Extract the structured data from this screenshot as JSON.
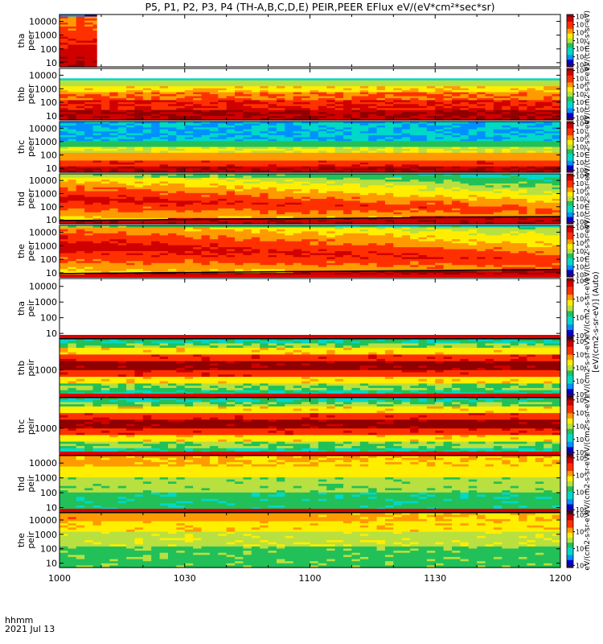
{
  "chart_data": {
    "type": "heatmap",
    "title": "P5, P1, P2, P3, P4 (TH-A,B,C,D,E) PEIR,PEER EFlux eV/(eV*cm²*sec*sr)",
    "x_tick_labels": [
      "1000",
      "1030",
      "1100",
      "1130",
      "1200"
    ],
    "x_range_minutes": [
      0,
      120
    ],
    "x_ticks_minutes": [
      0,
      30,
      60,
      90,
      120
    ],
    "time_label": "hhmm",
    "date_label": "2021 Jul 13",
    "colorbar_axis_label": "[eV/(cm2-s-sr-eV)] (Auto)",
    "colorbar_label_fragment": "eV/(cm2-s-sr-eV)",
    "colorscale": [
      "#3a0050",
      "#0000c8",
      "#0090ff",
      "#00d8c8",
      "#22c058",
      "#b8e040",
      "#ffee00",
      "#ff9a00",
      "#ff3000",
      "#d00000",
      "#900000"
    ],
    "panels": [
      {
        "name": "tha-peer",
        "ylabel": [
          "tha",
          "peer"
        ],
        "ytick_labels": [
          "10",
          "100",
          "1000",
          "10000"
        ],
        "log_range": [
          0.7,
          4.5
        ],
        "cbar_ticks": [
          "10²",
          "10³",
          "10⁴",
          "10⁵",
          "10⁶",
          "10⁷",
          "10⁸"
        ],
        "cbar_range": [
          2,
          8
        ],
        "profile": "strong",
        "data_end_minutes": 9,
        "boundary_line": false,
        "top_strip": false
      },
      {
        "name": "thb-peer",
        "ylabel": [
          "thb",
          "peer"
        ],
        "ytick_labels": [
          "10",
          "100",
          "1000",
          "10000"
        ],
        "log_range": [
          0.7,
          4.5
        ],
        "cbar_ticks": [
          "10²",
          "10³",
          "10⁴",
          "10⁵",
          "10⁶",
          "10⁷",
          "10⁸"
        ],
        "cbar_range": [
          2,
          8
        ],
        "profile": "peer_steady",
        "data_end_minutes": 120,
        "boundary_line": false,
        "top_strip": false
      },
      {
        "name": "thc-peer",
        "ylabel": [
          "thc",
          "peer"
        ],
        "ytick_labels": [
          "10",
          "100",
          "1000",
          "10000"
        ],
        "log_range": [
          0.7,
          4.5
        ],
        "cbar_ticks": [
          "10²",
          "10³",
          "10⁴",
          "10⁵",
          "10⁶",
          "10⁷",
          "10⁸"
        ],
        "cbar_range": [
          2,
          8
        ],
        "profile": "peer_bluetop",
        "data_end_minutes": 120,
        "boundary_line": false,
        "top_strip": false
      },
      {
        "name": "thd-peer",
        "ylabel": [
          "thd",
          "peer"
        ],
        "ytick_labels": [
          "10",
          "100",
          "1000",
          "10000"
        ],
        "log_range": [
          0.7,
          4.5
        ],
        "cbar_ticks": [
          "10²",
          "10³",
          "10⁴",
          "10⁵",
          "10⁶",
          "10⁷",
          "10⁸"
        ],
        "cbar_range": [
          2,
          8
        ],
        "profile": "peer_evolving",
        "data_end_minutes": 120,
        "boundary_line": true,
        "top_strip": false
      },
      {
        "name": "the-peer",
        "ylabel": [
          "the",
          "peer"
        ],
        "ytick_labels": [
          "10",
          "100",
          "1000",
          "10000"
        ],
        "log_range": [
          0.7,
          4.5
        ],
        "cbar_ticks": [
          "10²",
          "10³",
          "10⁴",
          "10⁵",
          "10⁶",
          "10⁷",
          "10⁸"
        ],
        "cbar_range": [
          2,
          8
        ],
        "profile": "peer_evolving2",
        "data_end_minutes": 120,
        "boundary_line": true,
        "top_strip": false
      },
      {
        "name": "tha-peir",
        "ylabel": [
          "tha",
          "peir"
        ],
        "ytick_labels": [
          "10",
          "100",
          "1000",
          "10000"
        ],
        "log_range": [
          0.7,
          4.5
        ],
        "cbar_ticks": [
          "10⁰",
          "10²",
          "10⁴",
          "10⁶"
        ],
        "cbar_range": [
          0,
          7
        ],
        "profile": "none",
        "data_end_minutes": 0,
        "boundary_line": false,
        "top_strip": true
      },
      {
        "name": "thb-peir",
        "ylabel": [
          "thb",
          "peir"
        ],
        "ytick_labels": [
          "1000"
        ],
        "log_range": [
          2.3,
          3.8
        ],
        "cbar_ticks": [
          "10²",
          "10³",
          "10⁴",
          "10⁵",
          "10⁶"
        ],
        "cbar_range": [
          1.5,
          6.5
        ],
        "profile": "peir_band",
        "data_end_minutes": 120,
        "boundary_line": false,
        "top_strip": true
      },
      {
        "name": "thc-peir",
        "ylabel": [
          "thc",
          "peir"
        ],
        "ytick_labels": [
          "1000"
        ],
        "log_range": [
          2.3,
          3.8
        ],
        "cbar_ticks": [
          "10²",
          "10³",
          "10⁴",
          "10⁵",
          "10⁶"
        ],
        "cbar_range": [
          1.5,
          6.5
        ],
        "profile": "peir_band",
        "data_end_minutes": 120,
        "boundary_line": false,
        "top_strip": true
      },
      {
        "name": "thd-peir",
        "ylabel": [
          "thd",
          "peir"
        ],
        "ytick_labels": [
          "10",
          "100",
          "1000",
          "10000"
        ],
        "log_range": [
          0.7,
          4.5
        ],
        "cbar_ticks": [
          "10³",
          "10⁴",
          "10⁵",
          "10⁶"
        ],
        "cbar_range": [
          2.5,
          6.5
        ],
        "profile": "peir_wide",
        "data_end_minutes": 120,
        "boundary_line": false,
        "top_strip": true
      },
      {
        "name": "the-peir",
        "ylabel": [
          "the",
          "peir"
        ],
        "ytick_labels": [
          "10",
          "100",
          "1000",
          "10000"
        ],
        "log_range": [
          0.7,
          4.5
        ],
        "cbar_ticks": [
          "10³",
          "10⁴",
          "10⁵",
          "10⁶"
        ],
        "cbar_range": [
          2.5,
          6.5
        ],
        "profile": "peir_wide2",
        "data_end_minutes": 120,
        "boundary_line": false,
        "top_strip": true
      }
    ]
  }
}
